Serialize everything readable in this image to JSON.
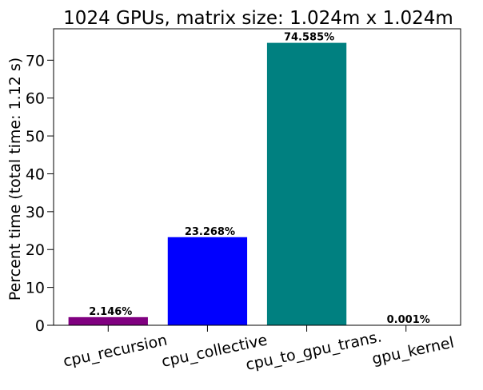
{
  "chart_data": {
    "type": "bar",
    "title": "1024 GPUs, matrix size: 1.024m x 1.024m",
    "xlabel": "",
    "ylabel": "Percent time (total time: 1.12 s)",
    "categories": [
      "cpu_recursion",
      "cpu_collective",
      "cpu_to_gpu_trans.",
      "gpu_kernel"
    ],
    "values": [
      2.146,
      23.268,
      74.585,
      0.001
    ],
    "value_labels": [
      "2.146%",
      "23.268%",
      "74.585%",
      "0.001%"
    ],
    "colors": [
      "#800080",
      "#0000ff",
      "#008080",
      "#008080"
    ],
    "ylim": [
      0,
      78.3
    ],
    "yticks": [
      0,
      10,
      20,
      30,
      40,
      50,
      60,
      70
    ],
    "ytick_labels": [
      "0",
      "10",
      "20",
      "30",
      "40",
      "50",
      "60",
      "70"
    ],
    "grid": false,
    "legend": "none",
    "x_tick_rotation_deg": -12
  }
}
